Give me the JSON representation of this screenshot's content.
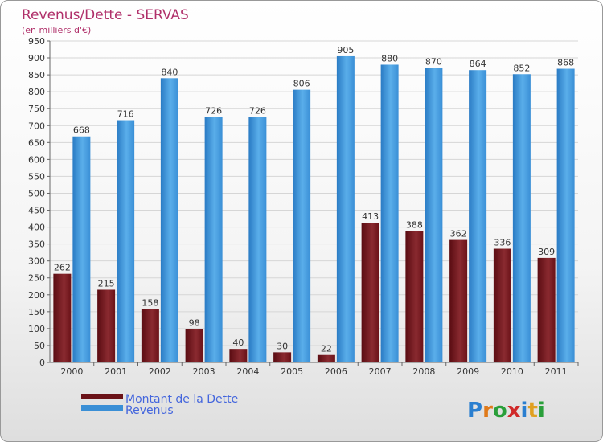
{
  "chart_data": {
    "type": "bar",
    "title": "Revenus/Dette - SERVAS",
    "subtitle": "(en milliers d'€)",
    "categories": [
      "2000",
      "2001",
      "2002",
      "2003",
      "2004",
      "2005",
      "2006",
      "2007",
      "2008",
      "2009",
      "2010",
      "2011"
    ],
    "series": [
      {
        "name": "Montant de la Dette",
        "values": [
          262,
          215,
          158,
          98,
          40,
          30,
          22,
          413,
          388,
          362,
          336,
          309
        ],
        "color": "#7a1a1f"
      },
      {
        "name": "Revenus",
        "values": [
          668,
          716,
          840,
          726,
          726,
          806,
          905,
          880,
          870,
          864,
          852,
          868
        ],
        "color": "#3a8fd6"
      }
    ],
    "ylim": [
      0,
      950
    ],
    "ytick_step": 50,
    "grid": true,
    "legend_position": "bottom-left"
  },
  "logo": {
    "letters": [
      "P",
      "r",
      "o",
      "x",
      "i",
      "t",
      "i"
    ],
    "colors": [
      "#2a7fd0",
      "#e07a1a",
      "#2a9f3a",
      "#d02a2a",
      "#2a7fd0",
      "#e0a020",
      "#2a9f3a"
    ]
  }
}
